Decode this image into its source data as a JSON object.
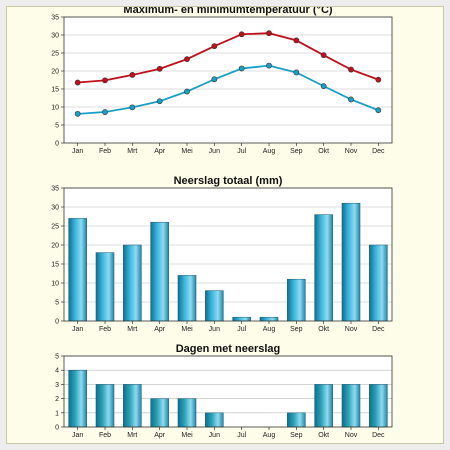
{
  "months": [
    "Jan",
    "Feb",
    "Mrt",
    "Apr",
    "Mei",
    "Jun",
    "Jul",
    "Aug",
    "Sep",
    "Okt",
    "Nov",
    "Dec"
  ],
  "chart_data": [
    {
      "type": "line",
      "title": "Maximum- en minimumtemperatuur (°C)",
      "categories": [
        "Jan",
        "Feb",
        "Mrt",
        "Apr",
        "Mei",
        "Jun",
        "Jul",
        "Aug",
        "Sep",
        "Okt",
        "Nov",
        "Dec"
      ],
      "series": [
        {
          "values": [
            16.8,
            17.4,
            18.9,
            20.6,
            23.3,
            26.9,
            30.2,
            30.5,
            28.5,
            24.4,
            20.4,
            17.6
          ],
          "color": "#c0101c"
        },
        {
          "values": [
            8.1,
            8.6,
            9.9,
            11.6,
            14.3,
            17.7,
            20.7,
            21.5,
            19.6,
            15.8,
            12.1,
            9.1
          ],
          "color": "#1a9fc4"
        }
      ],
      "ylim": [
        0,
        35
      ],
      "yticks": [
        0,
        5,
        10,
        15,
        20,
        25,
        30,
        35
      ],
      "grid": true
    },
    {
      "type": "bar",
      "title": "Neerslag totaal (mm)",
      "categories": [
        "Jan",
        "Feb",
        "Mrt",
        "Apr",
        "Mei",
        "Jun",
        "Jul",
        "Aug",
        "Sep",
        "Okt",
        "Nov",
        "Dec"
      ],
      "values": [
        27,
        18,
        20,
        26,
        12,
        8,
        1,
        1,
        11,
        28,
        31,
        20
      ],
      "ylim": [
        0,
        35
      ],
      "yticks": [
        0,
        5,
        10,
        15,
        20,
        25,
        30,
        35
      ],
      "grid": true,
      "color": "#3ab4dc"
    },
    {
      "type": "bar",
      "title": "Dagen met neerslag",
      "categories": [
        "Jan",
        "Feb",
        "Mrt",
        "Apr",
        "Mei",
        "Jun",
        "Jul",
        "Aug",
        "Sep",
        "Okt",
        "Nov",
        "Dec"
      ],
      "values": [
        4,
        3,
        3,
        2,
        2,
        1,
        0,
        0,
        1,
        3,
        3,
        3
      ],
      "ylim": [
        0,
        5
      ],
      "yticks": [
        0,
        1,
        2,
        3,
        4,
        5
      ],
      "grid": true,
      "color": "#2aa0b4"
    }
  ]
}
